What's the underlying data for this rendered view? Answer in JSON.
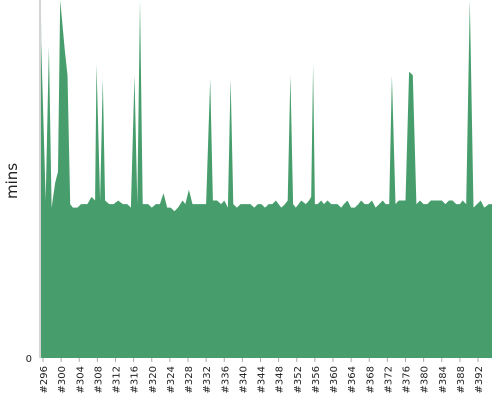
{
  "chart_data": {
    "type": "area",
    "title": "",
    "xlabel": "",
    "ylabel": "mins",
    "grid": false,
    "legend": "none",
    "area_color": "#479e6c",
    "axis_color": "#aaaaaa",
    "ylim": [
      0,
      100
    ],
    "y_ticks": [
      0
    ],
    "x_ticks": [
      296,
      300,
      304,
      308,
      312,
      316,
      320,
      324,
      328,
      332,
      336,
      340,
      344,
      348,
      352,
      356,
      360,
      364,
      368,
      372,
      376,
      380,
      384,
      388,
      392
    ],
    "x_tick_prefix": "#",
    "points": [
      [
        294.6,
        43
      ],
      [
        295.1,
        96
      ],
      [
        295.6,
        88
      ],
      [
        296.6,
        44
      ],
      [
        297.3,
        87
      ],
      [
        297.9,
        42
      ],
      [
        298.7,
        49
      ],
      [
        299.3,
        52
      ],
      [
        299.8,
        101
      ],
      [
        300.8,
        86
      ],
      [
        301.4,
        79
      ],
      [
        302.0,
        43
      ],
      [
        302.6,
        42
      ],
      [
        303.6,
        42
      ],
      [
        304.4,
        43
      ],
      [
        305.8,
        43
      ],
      [
        306.7,
        45
      ],
      [
        307.5,
        44
      ],
      [
        307.8,
        82
      ],
      [
        308.6,
        44
      ],
      [
        309.2,
        78
      ],
      [
        309.7,
        44
      ],
      [
        310.6,
        43
      ],
      [
        311.6,
        43
      ],
      [
        312.6,
        44
      ],
      [
        313.6,
        43
      ],
      [
        314.6,
        43
      ],
      [
        315.4,
        42
      ],
      [
        316.2,
        79
      ],
      [
        316.8,
        43
      ],
      [
        317.4,
        101
      ],
      [
        318.0,
        43
      ],
      [
        319.2,
        43
      ],
      [
        320.0,
        42
      ],
      [
        320.9,
        43
      ],
      [
        321.8,
        43
      ],
      [
        322.6,
        46
      ],
      [
        323.4,
        42
      ],
      [
        324.2,
        42
      ],
      [
        325.0,
        41
      ],
      [
        325.8,
        42
      ],
      [
        326.8,
        44
      ],
      [
        327.4,
        43
      ],
      [
        328.2,
        47
      ],
      [
        329.0,
        43
      ],
      [
        329.8,
        43
      ],
      [
        330.6,
        43
      ],
      [
        331.4,
        43
      ],
      [
        332.0,
        43
      ],
      [
        332.9,
        78
      ],
      [
        333.5,
        44
      ],
      [
        334.4,
        44
      ],
      [
        335.3,
        43
      ],
      [
        336.0,
        44
      ],
      [
        336.8,
        42
      ],
      [
        337.4,
        78
      ],
      [
        338.0,
        43
      ],
      [
        338.8,
        42
      ],
      [
        339.6,
        43
      ],
      [
        340.4,
        43
      ],
      [
        341.2,
        43
      ],
      [
        341.8,
        43
      ],
      [
        342.6,
        42
      ],
      [
        343.4,
        43
      ],
      [
        344.2,
        43
      ],
      [
        345.0,
        42
      ],
      [
        345.8,
        43
      ],
      [
        346.6,
        43
      ],
      [
        347.4,
        44
      ],
      [
        348.0,
        43
      ],
      [
        348.6,
        42
      ],
      [
        349.4,
        43
      ],
      [
        350.0,
        44
      ],
      [
        350.6,
        79
      ],
      [
        351.2,
        43
      ],
      [
        351.8,
        42
      ],
      [
        352.4,
        43
      ],
      [
        353.0,
        44
      ],
      [
        354.0,
        43
      ],
      [
        354.7,
        44
      ],
      [
        355.2,
        45
      ],
      [
        355.6,
        82
      ],
      [
        356.0,
        43
      ],
      [
        356.6,
        43
      ],
      [
        357.4,
        44
      ],
      [
        358.0,
        43
      ],
      [
        358.8,
        44
      ],
      [
        359.6,
        43
      ],
      [
        360.4,
        43
      ],
      [
        361.0,
        43
      ],
      [
        361.8,
        42
      ],
      [
        362.4,
        43
      ],
      [
        363.2,
        44
      ],
      [
        364.0,
        42
      ],
      [
        364.8,
        42
      ],
      [
        365.6,
        43
      ],
      [
        366.2,
        44
      ],
      [
        367.0,
        43
      ],
      [
        367.8,
        43
      ],
      [
        368.6,
        44
      ],
      [
        369.4,
        42
      ],
      [
        370.2,
        43
      ],
      [
        371.0,
        44
      ],
      [
        371.6,
        43
      ],
      [
        372.4,
        43
      ],
      [
        373.0,
        79
      ],
      [
        373.8,
        43
      ],
      [
        374.5,
        44
      ],
      [
        375.2,
        44
      ],
      [
        376.0,
        44
      ],
      [
        376.8,
        80
      ],
      [
        377.6,
        79
      ],
      [
        378.4,
        43
      ],
      [
        379.2,
        44
      ],
      [
        380.0,
        43
      ],
      [
        380.8,
        43
      ],
      [
        381.6,
        44
      ],
      [
        382.4,
        44
      ],
      [
        383.2,
        44
      ],
      [
        384.0,
        44
      ],
      [
        384.8,
        43
      ],
      [
        385.6,
        44
      ],
      [
        386.4,
        44
      ],
      [
        387.2,
        43
      ],
      [
        388.0,
        43
      ],
      [
        388.6,
        44
      ],
      [
        389.4,
        43
      ],
      [
        390.2,
        101
      ],
      [
        391.0,
        42
      ],
      [
        391.8,
        43
      ],
      [
        392.6,
        44
      ],
      [
        393.4,
        42
      ],
      [
        394.4,
        43
      ],
      [
        395.4,
        43
      ]
    ]
  }
}
